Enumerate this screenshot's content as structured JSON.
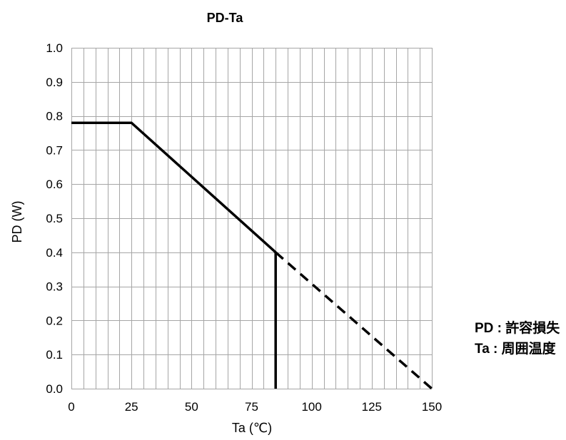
{
  "chart_data": {
    "type": "line",
    "title": "PD-Ta",
    "xlabel": "Ta (℃)",
    "ylabel": "PD (W)",
    "xlim": [
      0,
      150
    ],
    "ylim": [
      0,
      1.0
    ],
    "xticks": [
      0,
      25,
      50,
      75,
      100,
      125,
      150
    ],
    "yticks": [
      "0.0",
      "0.1",
      "0.2",
      "0.3",
      "0.4",
      "0.5",
      "0.6",
      "0.7",
      "0.8",
      "0.9",
      "1.0"
    ],
    "xtick_labels": [
      "0",
      "25",
      "50",
      "75",
      "100",
      "125",
      "150"
    ],
    "grid": true,
    "minor_x_grid_step": 5,
    "series": [
      {
        "style": "solid",
        "color": "#000000",
        "x": [
          0,
          25,
          85
        ],
        "y": [
          0.78,
          0.78,
          0.4
        ]
      },
      {
        "style": "dashed",
        "color": "#000000",
        "x": [
          85,
          150
        ],
        "y": [
          0.4,
          0.0
        ]
      },
      {
        "style": "solid",
        "color": "#000000",
        "x": [
          85,
          85
        ],
        "y": [
          0.0,
          0.4
        ]
      }
    ],
    "annotations": [
      {
        "label": "PD :",
        "text": "許容損失"
      },
      {
        "label": "Ta :",
        "text": "周囲温度"
      }
    ]
  }
}
